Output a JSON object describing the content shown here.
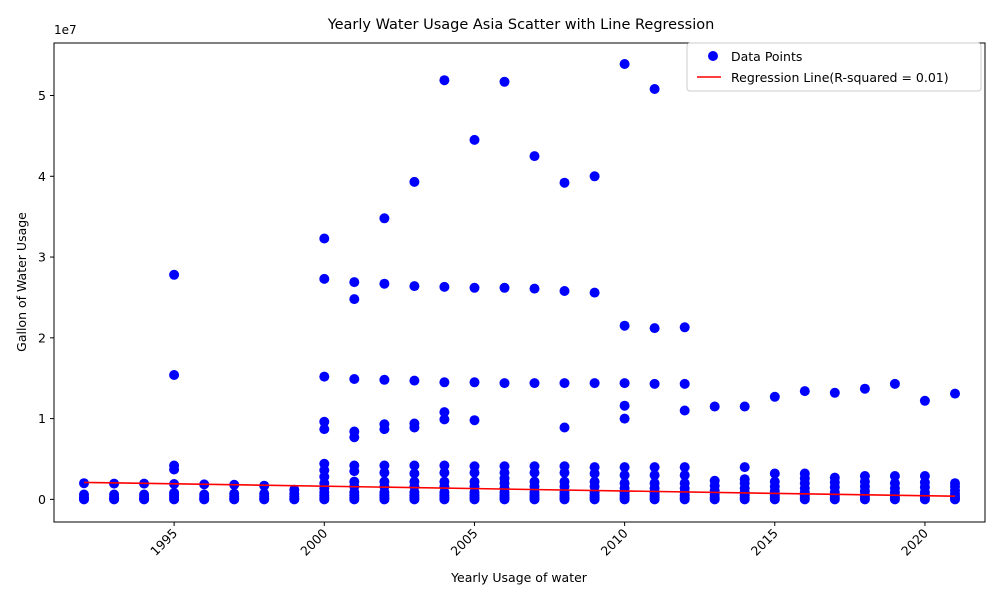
{
  "chart_data": {
    "type": "scatter",
    "title": "Yearly Water Usage Asia Scatter with Line Regression",
    "xlabel": "Yearly Usage of water",
    "ylabel": "Gallon of Water Usage",
    "y_offset_label": "1e7",
    "xlim": [
      1991.0,
      2022.0
    ],
    "ylim": [
      -2800000,
      56500000
    ],
    "x_ticks": [
      1995,
      2000,
      2005,
      2010,
      2015,
      2020
    ],
    "x_tick_labels": [
      "1995",
      "2000",
      "2005",
      "2010",
      "2015",
      "2020"
    ],
    "y_ticks": [
      0,
      10000000,
      20000000,
      30000000,
      40000000,
      50000000
    ],
    "y_tick_labels": [
      "0",
      "1",
      "2",
      "3",
      "4",
      "5"
    ],
    "grid": false,
    "legend_position": "top-right",
    "series": [
      {
        "name": "Data Points",
        "kind": "scatter",
        "color": "#0000ff",
        "points": [
          [
            1992,
            2000000
          ],
          [
            1992,
            600000
          ],
          [
            1992,
            300000
          ],
          [
            1992,
            100000
          ],
          [
            1992,
            0
          ],
          [
            1993,
            1950000
          ],
          [
            1993,
            600000
          ],
          [
            1993,
            300000
          ],
          [
            1993,
            100000
          ],
          [
            1993,
            0
          ],
          [
            1994,
            1950000
          ],
          [
            1994,
            600000
          ],
          [
            1994,
            300000
          ],
          [
            1994,
            100000
          ],
          [
            1994,
            0
          ],
          [
            1995,
            27800000
          ],
          [
            1995,
            15400000
          ],
          [
            1995,
            4200000
          ],
          [
            1995,
            3700000
          ],
          [
            1995,
            1900000
          ],
          [
            1995,
            800000
          ],
          [
            1995,
            500000
          ],
          [
            1995,
            250000
          ],
          [
            1995,
            0
          ],
          [
            1996,
            1850000
          ],
          [
            1996,
            600000
          ],
          [
            1996,
            300000
          ],
          [
            1996,
            100000
          ],
          [
            1996,
            0
          ],
          [
            1997,
            1800000
          ],
          [
            1997,
            700000
          ],
          [
            1997,
            400000
          ],
          [
            1997,
            150000
          ],
          [
            1997,
            0
          ],
          [
            1998,
            1700000
          ],
          [
            1998,
            700000
          ],
          [
            1998,
            400000
          ],
          [
            1998,
            150000
          ],
          [
            1998,
            0
          ],
          [
            1999,
            1200000
          ],
          [
            1999,
            700000
          ],
          [
            1999,
            400000
          ],
          [
            1999,
            150000
          ],
          [
            1999,
            0
          ],
          [
            2000,
            32300000
          ],
          [
            2000,
            27300000
          ],
          [
            2000,
            15200000
          ],
          [
            2000,
            9600000
          ],
          [
            2000,
            8700000
          ],
          [
            2000,
            4400000
          ],
          [
            2000,
            3600000
          ],
          [
            2000,
            2800000
          ],
          [
            2000,
            2000000
          ],
          [
            2000,
            1400000
          ],
          [
            2000,
            900000
          ],
          [
            2000,
            500000
          ],
          [
            2000,
            200000
          ],
          [
            2000,
            0
          ],
          [
            2001,
            26900000
          ],
          [
            2001,
            24800000
          ],
          [
            2001,
            14900000
          ],
          [
            2001,
            8400000
          ],
          [
            2001,
            7700000
          ],
          [
            2001,
            4200000
          ],
          [
            2001,
            3500000
          ],
          [
            2001,
            2200000
          ],
          [
            2001,
            1600000
          ],
          [
            2001,
            900000
          ],
          [
            2001,
            500000
          ],
          [
            2001,
            200000
          ],
          [
            2001,
            0
          ],
          [
            2002,
            34800000
          ],
          [
            2002,
            26700000
          ],
          [
            2002,
            14800000
          ],
          [
            2002,
            9300000
          ],
          [
            2002,
            8700000
          ],
          [
            2002,
            4200000
          ],
          [
            2002,
            3300000
          ],
          [
            2002,
            2200000
          ],
          [
            2002,
            1600000
          ],
          [
            2002,
            900000
          ],
          [
            2002,
            500000
          ],
          [
            2002,
            200000
          ],
          [
            2002,
            0
          ],
          [
            2003,
            39300000
          ],
          [
            2003,
            26400000
          ],
          [
            2003,
            14700000
          ],
          [
            2003,
            9400000
          ],
          [
            2003,
            8900000
          ],
          [
            2003,
            4200000
          ],
          [
            2003,
            3200000
          ],
          [
            2003,
            2200000
          ],
          [
            2003,
            1600000
          ],
          [
            2003,
            900000
          ],
          [
            2003,
            500000
          ],
          [
            2003,
            200000
          ],
          [
            2003,
            0
          ],
          [
            2004,
            51900000
          ],
          [
            2004,
            26300000
          ],
          [
            2004,
            14500000
          ],
          [
            2004,
            10800000
          ],
          [
            2004,
            9900000
          ],
          [
            2004,
            4200000
          ],
          [
            2004,
            3300000
          ],
          [
            2004,
            2200000
          ],
          [
            2004,
            1600000
          ],
          [
            2004,
            900000
          ],
          [
            2004,
            500000
          ],
          [
            2004,
            200000
          ],
          [
            2004,
            0
          ],
          [
            2005,
            44500000
          ],
          [
            2005,
            26200000
          ],
          [
            2005,
            14500000
          ],
          [
            2005,
            9800000
          ],
          [
            2005,
            4100000
          ],
          [
            2005,
            3300000
          ],
          [
            2005,
            2200000
          ],
          [
            2005,
            1600000
          ],
          [
            2005,
            900000
          ],
          [
            2005,
            500000
          ],
          [
            2005,
            200000
          ],
          [
            2005,
            0
          ],
          [
            2006,
            51700000
          ],
          [
            2006,
            26200000
          ],
          [
            2006,
            14400000
          ],
          [
            2006,
            4100000
          ],
          [
            2006,
            3300000
          ],
          [
            2006,
            2600000
          ],
          [
            2006,
            2000000
          ],
          [
            2006,
            1400000
          ],
          [
            2006,
            900000
          ],
          [
            2006,
            500000
          ],
          [
            2006,
            200000
          ],
          [
            2006,
            0
          ],
          [
            2007,
            42500000
          ],
          [
            2007,
            26100000
          ],
          [
            2007,
            14400000
          ],
          [
            2007,
            4100000
          ],
          [
            2007,
            3300000
          ],
          [
            2007,
            2200000
          ],
          [
            2007,
            1600000
          ],
          [
            2007,
            900000
          ],
          [
            2007,
            500000
          ],
          [
            2007,
            200000
          ],
          [
            2007,
            0
          ],
          [
            2008,
            39200000
          ],
          [
            2008,
            25800000
          ],
          [
            2008,
            14400000
          ],
          [
            2008,
            8900000
          ],
          [
            2008,
            4100000
          ],
          [
            2008,
            3300000
          ],
          [
            2008,
            2200000
          ],
          [
            2008,
            1600000
          ],
          [
            2008,
            900000
          ],
          [
            2008,
            500000
          ],
          [
            2008,
            200000
          ],
          [
            2008,
            0
          ],
          [
            2009,
            40000000
          ],
          [
            2009,
            25600000
          ],
          [
            2009,
            14400000
          ],
          [
            2009,
            4000000
          ],
          [
            2009,
            3200000
          ],
          [
            2009,
            2200000
          ],
          [
            2009,
            1600000
          ],
          [
            2009,
            900000
          ],
          [
            2009,
            500000
          ],
          [
            2009,
            200000
          ],
          [
            2009,
            0
          ],
          [
            2010,
            53900000
          ],
          [
            2010,
            21500000
          ],
          [
            2010,
            14400000
          ],
          [
            2010,
            11600000
          ],
          [
            2010,
            10000000
          ],
          [
            2010,
            4000000
          ],
          [
            2010,
            3000000
          ],
          [
            2010,
            2000000
          ],
          [
            2010,
            1400000
          ],
          [
            2010,
            900000
          ],
          [
            2010,
            500000
          ],
          [
            2010,
            200000
          ],
          [
            2010,
            0
          ],
          [
            2011,
            50800000
          ],
          [
            2011,
            21200000
          ],
          [
            2011,
            14300000
          ],
          [
            2011,
            4000000
          ],
          [
            2011,
            3000000
          ],
          [
            2011,
            2000000
          ],
          [
            2011,
            1400000
          ],
          [
            2011,
            900000
          ],
          [
            2011,
            500000
          ],
          [
            2011,
            200000
          ],
          [
            2011,
            0
          ],
          [
            2012,
            21300000
          ],
          [
            2012,
            14300000
          ],
          [
            2012,
            11000000
          ],
          [
            2012,
            4000000
          ],
          [
            2012,
            3000000
          ],
          [
            2012,
            2000000
          ],
          [
            2012,
            1400000
          ],
          [
            2012,
            900000
          ],
          [
            2012,
            500000
          ],
          [
            2012,
            200000
          ],
          [
            2012,
            0
          ],
          [
            2013,
            11500000
          ],
          [
            2013,
            2300000
          ],
          [
            2013,
            1700000
          ],
          [
            2013,
            1100000
          ],
          [
            2013,
            600000
          ],
          [
            2013,
            200000
          ],
          [
            2013,
            0
          ],
          [
            2014,
            11500000
          ],
          [
            2014,
            4000000
          ],
          [
            2014,
            2500000
          ],
          [
            2014,
            2000000
          ],
          [
            2014,
            1400000
          ],
          [
            2014,
            900000
          ],
          [
            2014,
            500000
          ],
          [
            2014,
            200000
          ],
          [
            2014,
            0
          ],
          [
            2015,
            12700000
          ],
          [
            2015,
            3200000
          ],
          [
            2015,
            2200000
          ],
          [
            2015,
            1600000
          ],
          [
            2015,
            1000000
          ],
          [
            2015,
            500000
          ],
          [
            2015,
            200000
          ],
          [
            2015,
            0
          ],
          [
            2016,
            13400000
          ],
          [
            2016,
            3200000
          ],
          [
            2016,
            2600000
          ],
          [
            2016,
            2000000
          ],
          [
            2016,
            1400000
          ],
          [
            2016,
            900000
          ],
          [
            2016,
            500000
          ],
          [
            2016,
            200000
          ],
          [
            2016,
            0
          ],
          [
            2017,
            13200000
          ],
          [
            2017,
            2700000
          ],
          [
            2017,
            2100000
          ],
          [
            2017,
            1500000
          ],
          [
            2017,
            900000
          ],
          [
            2017,
            500000
          ],
          [
            2017,
            200000
          ],
          [
            2017,
            0
          ],
          [
            2018,
            13700000
          ],
          [
            2018,
            2900000
          ],
          [
            2018,
            2200000
          ],
          [
            2018,
            1600000
          ],
          [
            2018,
            1000000
          ],
          [
            2018,
            500000
          ],
          [
            2018,
            200000
          ],
          [
            2018,
            0
          ],
          [
            2019,
            14300000
          ],
          [
            2019,
            2900000
          ],
          [
            2019,
            2000000
          ],
          [
            2019,
            1400000
          ],
          [
            2019,
            900000
          ],
          [
            2019,
            500000
          ],
          [
            2019,
            200000
          ],
          [
            2019,
            0
          ],
          [
            2020,
            12200000
          ],
          [
            2020,
            2900000
          ],
          [
            2020,
            2100000
          ],
          [
            2020,
            1500000
          ],
          [
            2020,
            900000
          ],
          [
            2020,
            500000
          ],
          [
            2020,
            200000
          ],
          [
            2020,
            0
          ],
          [
            2021,
            13100000
          ],
          [
            2021,
            2000000
          ],
          [
            2021,
            1600000
          ],
          [
            2021,
            1100000
          ],
          [
            2021,
            700000
          ],
          [
            2021,
            400000
          ],
          [
            2021,
            150000
          ],
          [
            2021,
            0
          ]
        ]
      },
      {
        "name": "Regression Line(R-squared = 0.01)",
        "kind": "line",
        "color": "#ff0000",
        "points": [
          [
            1992,
            2100000
          ],
          [
            2021,
            400000
          ]
        ]
      }
    ]
  }
}
